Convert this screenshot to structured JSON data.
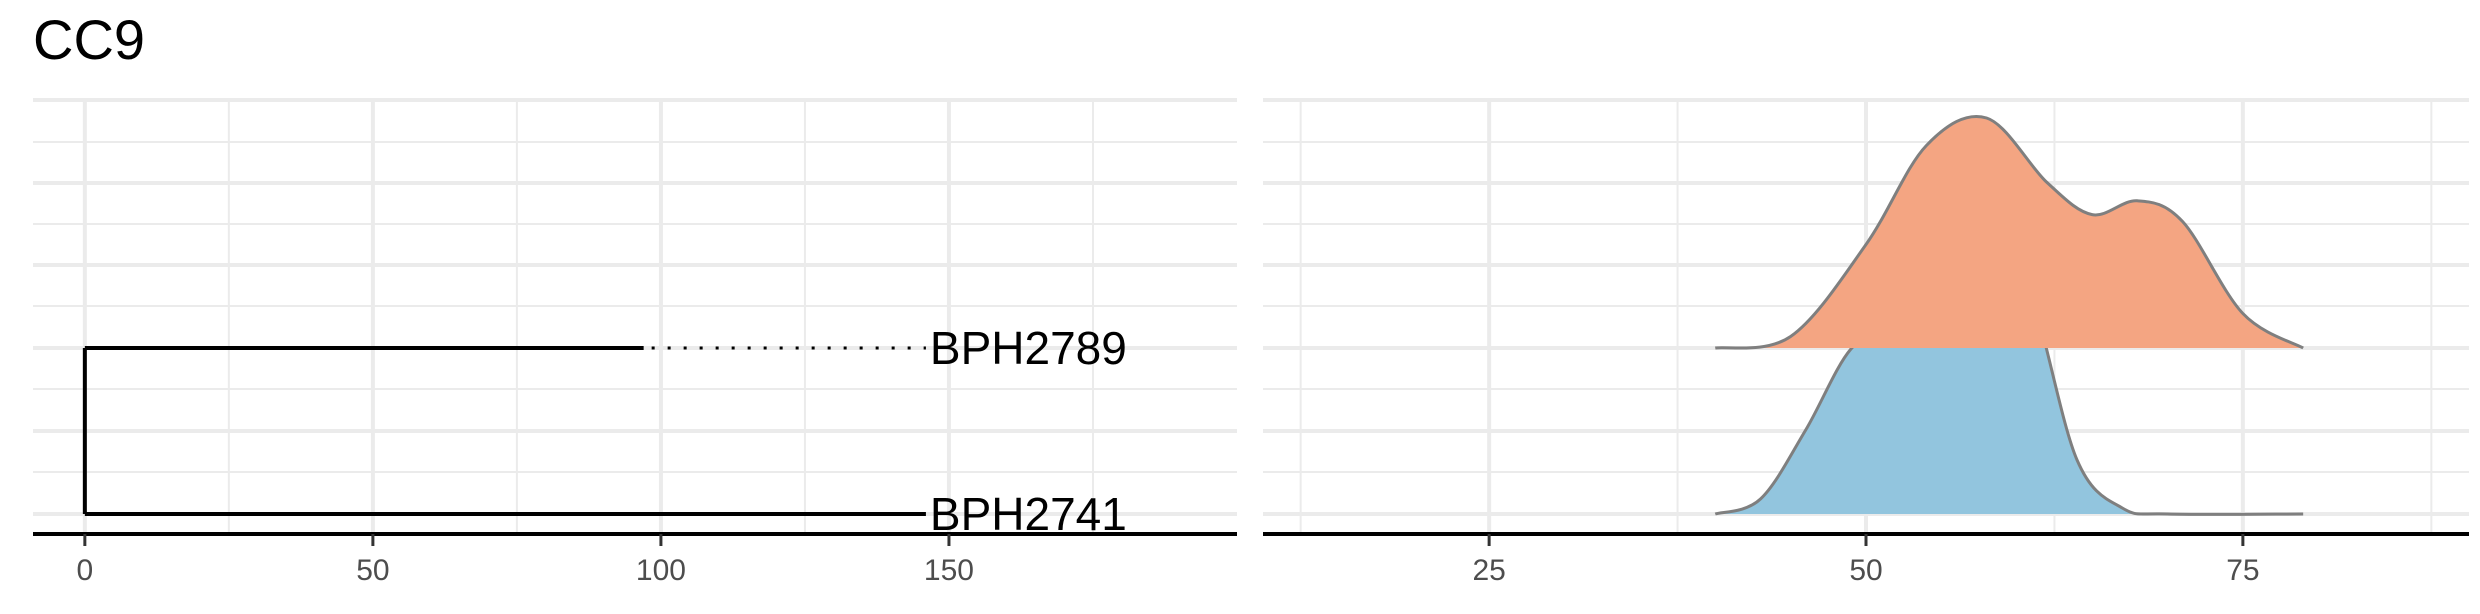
{
  "title": "CC9",
  "colors": {
    "grid": "#ebebeb",
    "axis": "#000000",
    "tree": "#000000",
    "ridge_outline": "#7f7f7f",
    "ridge_top": "#f4a582",
    "ridge_bottom": "#92c5de"
  },
  "chart_data": [
    {
      "type": "tree",
      "tips": [
        "BPH2789",
        "BPH2741"
      ],
      "root_x": 0,
      "tip_x": [
        97,
        146
      ],
      "tip_label_x": 146,
      "xlim": [
        -9,
        200
      ],
      "xticks": [
        0,
        50,
        100,
        150
      ],
      "xtick_labels": [
        "0",
        "50",
        "100",
        "150"
      ],
      "grid": true
    },
    {
      "type": "area",
      "subtype": "ridgeline-density",
      "xlim": [
        10,
        90
      ],
      "xticks": [
        25,
        50,
        75
      ],
      "xtick_labels": [
        "25",
        "50",
        "75"
      ],
      "grid": true,
      "series": [
        {
          "rows": "BPH2789",
          "x": [
            40,
            45,
            50,
            54,
            58,
            62,
            65,
            68,
            71,
            75,
            79
          ],
          "y": [
            0.0,
            0.05,
            0.45,
            0.88,
            1.0,
            0.72,
            0.58,
            0.64,
            0.55,
            0.15,
            0.0
          ]
        },
        {
          "rows": "BPH2741",
          "x": [
            40,
            43,
            46,
            49,
            52,
            55,
            58,
            61,
            64,
            67,
            70,
            79
          ],
          "y": [
            0.0,
            0.05,
            0.28,
            0.55,
            0.63,
            0.72,
            1.0,
            0.72,
            0.18,
            0.02,
            0.0,
            0.0
          ]
        }
      ]
    }
  ]
}
